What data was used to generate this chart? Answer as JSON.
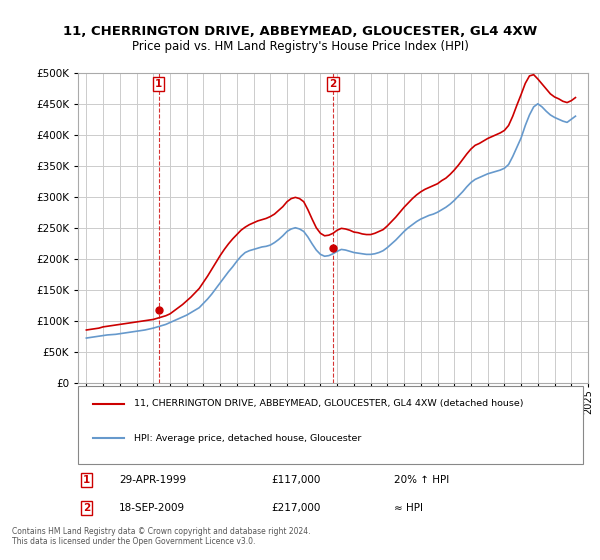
{
  "title_line1": "11, CHERRINGTON DRIVE, ABBEYMEAD, GLOUCESTER, GL4 4XW",
  "title_line2": "Price paid vs. HM Land Registry's House Price Index (HPI)",
  "footer": "Contains HM Land Registry data © Crown copyright and database right 2024.\nThis data is licensed under the Open Government Licence v3.0.",
  "legend_label1": "11, CHERRINGTON DRIVE, ABBEYMEAD, GLOUCESTER, GL4 4XW (detached house)",
  "legend_label2": "HPI: Average price, detached house, Gloucester",
  "annotation1_label": "1",
  "annotation1_date": "29-APR-1999",
  "annotation1_price": "£117,000",
  "annotation1_hpi": "20% ↑ HPI",
  "annotation2_label": "2",
  "annotation2_date": "18-SEP-2009",
  "annotation2_price": "£217,000",
  "annotation2_hpi": "≈ HPI",
  "red_color": "#cc0000",
  "blue_color": "#6699cc",
  "annotation_color": "#cc0000",
  "background_color": "#ffffff",
  "grid_color": "#cccccc",
  "ylim": [
    0,
    500000
  ],
  "yticks": [
    0,
    50000,
    100000,
    150000,
    200000,
    250000,
    300000,
    350000,
    400000,
    450000,
    500000
  ],
  "hpi_years": [
    1995,
    1995.25,
    1995.5,
    1995.75,
    1996,
    1996.25,
    1996.5,
    1996.75,
    1997,
    1997.25,
    1997.5,
    1997.75,
    1998,
    1998.25,
    1998.5,
    1998.75,
    1999,
    1999.25,
    1999.5,
    1999.75,
    2000,
    2000.25,
    2000.5,
    2000.75,
    2001,
    2001.25,
    2001.5,
    2001.75,
    2002,
    2002.25,
    2002.5,
    2002.75,
    2003,
    2003.25,
    2003.5,
    2003.75,
    2004,
    2004.25,
    2004.5,
    2004.75,
    2005,
    2005.25,
    2005.5,
    2005.75,
    2006,
    2006.25,
    2006.5,
    2006.75,
    2007,
    2007.25,
    2007.5,
    2007.75,
    2008,
    2008.25,
    2008.5,
    2008.75,
    2009,
    2009.25,
    2009.5,
    2009.75,
    2010,
    2010.25,
    2010.5,
    2010.75,
    2011,
    2011.25,
    2011.5,
    2011.75,
    2012,
    2012.25,
    2012.5,
    2012.75,
    2013,
    2013.25,
    2013.5,
    2013.75,
    2014,
    2014.25,
    2014.5,
    2014.75,
    2015,
    2015.25,
    2015.5,
    2015.75,
    2016,
    2016.25,
    2016.5,
    2016.75,
    2017,
    2017.25,
    2017.5,
    2017.75,
    2018,
    2018.25,
    2018.5,
    2018.75,
    2019,
    2019.25,
    2019.5,
    2019.75,
    2020,
    2020.25,
    2020.5,
    2020.75,
    2021,
    2021.25,
    2021.5,
    2021.75,
    2022,
    2022.25,
    2022.5,
    2022.75,
    2023,
    2023.25,
    2023.5,
    2023.75,
    2024,
    2024.25
  ],
  "hpi_values": [
    72000,
    73000,
    74000,
    75000,
    76000,
    77000,
    77500,
    78000,
    79000,
    80000,
    81000,
    82000,
    83000,
    84000,
    85000,
    86500,
    88000,
    90000,
    92000,
    94000,
    97000,
    100000,
    103000,
    106000,
    109000,
    113000,
    117000,
    121000,
    128000,
    135000,
    143000,
    152000,
    161000,
    170000,
    179000,
    187000,
    196000,
    204000,
    210000,
    213000,
    215000,
    217000,
    219000,
    220000,
    222000,
    226000,
    231000,
    237000,
    244000,
    248000,
    250000,
    248000,
    244000,
    235000,
    224000,
    214000,
    207000,
    204000,
    205000,
    208000,
    212000,
    215000,
    214000,
    212000,
    210000,
    209000,
    208000,
    207000,
    207000,
    208000,
    210000,
    213000,
    218000,
    224000,
    230000,
    237000,
    244000,
    250000,
    255000,
    260000,
    264000,
    267000,
    270000,
    272000,
    275000,
    279000,
    283000,
    288000,
    294000,
    301000,
    308000,
    316000,
    323000,
    328000,
    331000,
    334000,
    337000,
    339000,
    341000,
    343000,
    346000,
    352000,
    365000,
    380000,
    395000,
    415000,
    432000,
    445000,
    450000,
    445000,
    438000,
    432000,
    428000,
    425000,
    422000,
    420000,
    425000,
    430000
  ],
  "red_years": [
    1995,
    1995.25,
    1995.5,
    1995.75,
    1996,
    1996.25,
    1996.5,
    1996.75,
    1997,
    1997.25,
    1997.5,
    1997.75,
    1998,
    1998.25,
    1998.5,
    1998.75,
    1999,
    1999.25,
    1999.5,
    1999.75,
    2000,
    2000.25,
    2000.5,
    2000.75,
    2001,
    2001.25,
    2001.5,
    2001.75,
    2002,
    2002.25,
    2002.5,
    2002.75,
    2003,
    2003.25,
    2003.5,
    2003.75,
    2004,
    2004.25,
    2004.5,
    2004.75,
    2005,
    2005.25,
    2005.5,
    2005.75,
    2006,
    2006.25,
    2006.5,
    2006.75,
    2007,
    2007.25,
    2007.5,
    2007.75,
    2008,
    2008.25,
    2008.5,
    2008.75,
    2009,
    2009.25,
    2009.5,
    2009.75,
    2010,
    2010.25,
    2010.5,
    2010.75,
    2011,
    2011.25,
    2011.5,
    2011.75,
    2012,
    2012.25,
    2012.5,
    2012.75,
    2013,
    2013.25,
    2013.5,
    2013.75,
    2014,
    2014.25,
    2014.5,
    2014.75,
    2015,
    2015.25,
    2015.5,
    2015.75,
    2016,
    2016.25,
    2016.5,
    2016.75,
    2017,
    2017.25,
    2017.5,
    2017.75,
    2018,
    2018.25,
    2018.5,
    2018.75,
    2019,
    2019.25,
    2019.5,
    2019.75,
    2020,
    2020.25,
    2020.5,
    2020.75,
    2021,
    2021.25,
    2021.5,
    2021.75,
    2022,
    2022.25,
    2022.5,
    2022.75,
    2023,
    2023.25,
    2023.5,
    2023.75,
    2024,
    2024.25
  ],
  "red_values": [
    85000,
    86000,
    87000,
    88000,
    90000,
    91000,
    92000,
    93000,
    94000,
    95000,
    96000,
    97000,
    98000,
    99000,
    100000,
    101000,
    102000,
    104000,
    106000,
    108000,
    111000,
    116000,
    121000,
    126000,
    132000,
    138000,
    145000,
    152000,
    162000,
    172000,
    183000,
    194000,
    205000,
    215000,
    224000,
    232000,
    239000,
    246000,
    251000,
    255000,
    258000,
    261000,
    263000,
    265000,
    268000,
    272000,
    278000,
    284000,
    292000,
    297000,
    299000,
    297000,
    292000,
    279000,
    264000,
    250000,
    241000,
    237000,
    238000,
    241000,
    246000,
    249000,
    248000,
    246000,
    243000,
    242000,
    240000,
    239000,
    239000,
    241000,
    244000,
    247000,
    253000,
    260000,
    267000,
    275000,
    283000,
    290000,
    297000,
    303000,
    308000,
    312000,
    315000,
    318000,
    321000,
    326000,
    330000,
    336000,
    343000,
    351000,
    360000,
    369000,
    377000,
    383000,
    386000,
    390000,
    394000,
    397000,
    400000,
    403000,
    407000,
    415000,
    430000,
    448000,
    465000,
    483000,
    495000,
    497000,
    490000,
    482000,
    474000,
    466000,
    461000,
    458000,
    454000,
    452000,
    455000,
    460000
  ],
  "ann1_x": 1999.33,
  "ann1_y": 117000,
  "ann2_x": 2009.75,
  "ann2_y": 217000,
  "xlim_left": 1994.5,
  "xlim_right": 2024.8,
  "xtick_years": [
    1995,
    1996,
    1997,
    1998,
    1999,
    2000,
    2001,
    2002,
    2003,
    2004,
    2005,
    2006,
    2007,
    2008,
    2009,
    2010,
    2011,
    2012,
    2013,
    2014,
    2015,
    2016,
    2017,
    2018,
    2019,
    2020,
    2021,
    2022,
    2023,
    2024,
    2025
  ]
}
